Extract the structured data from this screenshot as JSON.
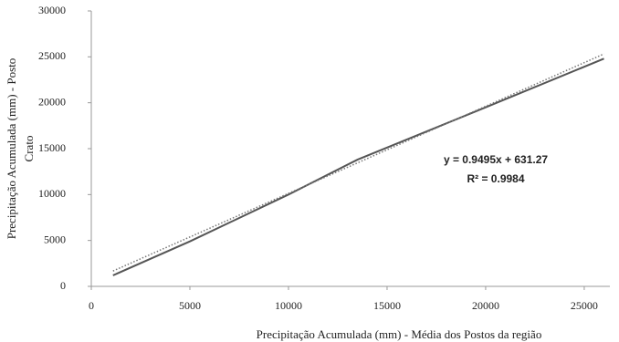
{
  "chart_data": {
    "type": "line",
    "x_label": "Precipitação Acumulada (mm) - Média dos Postos da região",
    "y_label": [
      "Precipitação Acumulada (mm) - Posto",
      "Crato"
    ],
    "annotations": [
      "y = 0.9495x + 631.27",
      "R² = 0.9984"
    ],
    "xlim": [
      0,
      26300
    ],
    "xticks": [
      0,
      5000,
      10000,
      15000,
      20000,
      25000
    ],
    "ylim": [
      0,
      30000
    ],
    "yticks": [
      0,
      5000,
      10000,
      15000,
      20000,
      25000,
      30000
    ],
    "series": [
      {
        "color": "#555555",
        "style": "solid",
        "x": [
          1100,
          5000,
          10000,
          13500,
          20000,
          26000
        ],
        "values": [
          1200,
          4900,
          10000,
          13800,
          19500,
          24800
        ]
      },
      {
        "color": "#777777",
        "style": "dotted",
        "x": [
          1100,
          26000
        ],
        "values": [
          1676,
          25318
        ]
      }
    ]
  }
}
